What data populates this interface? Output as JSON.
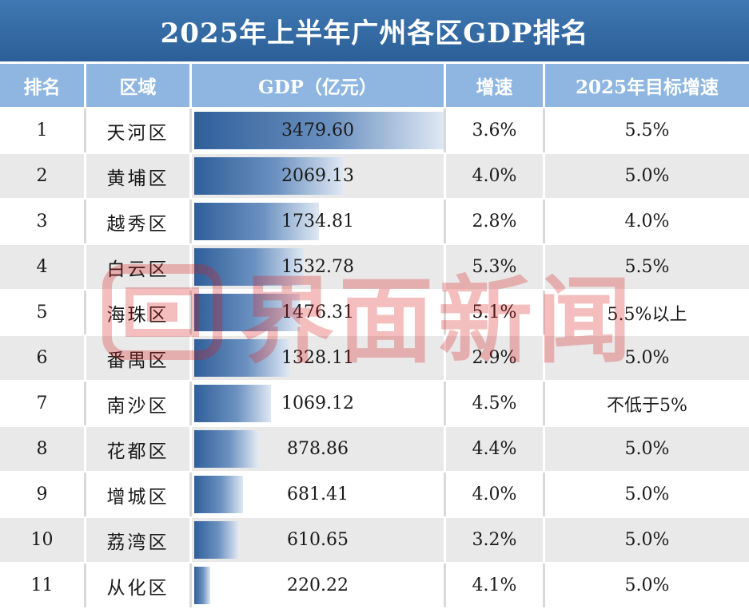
{
  "title": "2025年上半年广州各区GDP排名",
  "headers": {
    "rank": "排名",
    "area": "区域",
    "gdp": "GDP（亿元）",
    "rate": "增速",
    "goal": "2025年目标增速"
  },
  "watermark": "界面新闻",
  "colors": {
    "title_bg": "#2c5f97",
    "header_bg": "#8eb6e0",
    "bar": "#2f5f9a",
    "watermark": "#d91a1a"
  },
  "chart_data": {
    "type": "table",
    "title": "2025年上半年广州各区GDP排名",
    "columns": [
      "排名",
      "区域",
      "GDP（亿元）",
      "增速",
      "2025年目标增速"
    ],
    "rows": [
      {
        "rank": "1",
        "area": "天河区",
        "gdp": "3479.60",
        "rate": "3.6%",
        "goal": "5.5%"
      },
      {
        "rank": "2",
        "area": "黄埔区",
        "gdp": "2069.13",
        "rate": "4.0%",
        "goal": "5.0%"
      },
      {
        "rank": "3",
        "area": "越秀区",
        "gdp": "1734.81",
        "rate": "2.8%",
        "goal": "4.0%"
      },
      {
        "rank": "4",
        "area": "白云区",
        "gdp": "1532.78",
        "rate": "5.3%",
        "goal": "5.5%"
      },
      {
        "rank": "5",
        "area": "海珠区",
        "gdp": "1476.31",
        "rate": "5.1%",
        "goal": "5.5%以上"
      },
      {
        "rank": "6",
        "area": "番禺区",
        "gdp": "1328.11",
        "rate": "2.9%",
        "goal": "5.0%"
      },
      {
        "rank": "7",
        "area": "南沙区",
        "gdp": "1069.12",
        "rate": "4.5%",
        "goal": "不低于5%"
      },
      {
        "rank": "8",
        "area": "花都区",
        "gdp": "878.86",
        "rate": "4.4%",
        "goal": "5.0%"
      },
      {
        "rank": "9",
        "area": "增城区",
        "gdp": "681.41",
        "rate": "4.0%",
        "goal": "5.0%"
      },
      {
        "rank": "10",
        "area": "荔湾区",
        "gdp": "610.65",
        "rate": "3.2%",
        "goal": "5.0%"
      },
      {
        "rank": "11",
        "area": "从化区",
        "gdp": "220.22",
        "rate": "4.1%",
        "goal": "5.0%"
      }
    ]
  }
}
